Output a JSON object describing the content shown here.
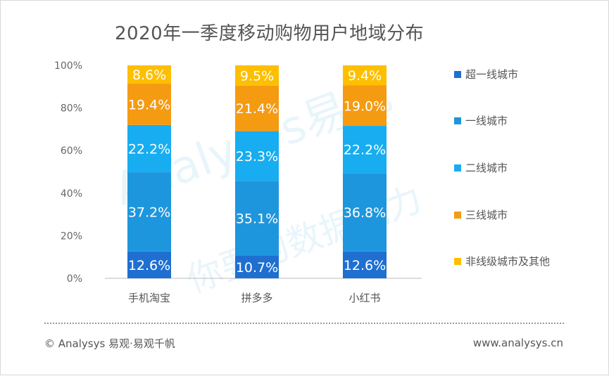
{
  "title": "2020年一季度移动购物用户地域分布",
  "colors": {
    "超一线城市": "#1f6fd1",
    "一线城市": "#1e96dd",
    "二线城市": "#17adf0",
    "三线城市": "#f59b12",
    "非线级城市及其他": "#fdbf00"
  },
  "chart_data": {
    "type": "bar",
    "stacked": true,
    "title": "2020年一季度移动购物用户地域分布",
    "categories": [
      "手机淘宝",
      "拼多多",
      "小红书"
    ],
    "ylim": [
      0,
      100
    ],
    "yticks": [
      "0%",
      "20%",
      "40%",
      "60%",
      "80%",
      "100%"
    ],
    "legend_position": "right",
    "series": [
      {
        "name": "超一线城市",
        "values": [
          12.6,
          10.7,
          12.6
        ]
      },
      {
        "name": "一线城市",
        "values": [
          37.2,
          35.1,
          36.8
        ]
      },
      {
        "name": "二线城市",
        "values": [
          22.2,
          23.3,
          22.2
        ]
      },
      {
        "name": "三线城市",
        "values": [
          19.4,
          21.4,
          19.0
        ]
      },
      {
        "name": "非线级城市及其他",
        "values": [
          8.6,
          9.5,
          9.4
        ]
      }
    ]
  },
  "legend": [
    "超一线城市",
    "一线城市",
    "二线城市",
    "三线城市",
    "非线级城市及其他"
  ],
  "footer": {
    "left": "© Analysys 易观·易观千帆",
    "right": "www.analysys.cn"
  },
  "watermark": {
    "brand": "Analysys易观",
    "slogan": "你要的数据能力"
  }
}
